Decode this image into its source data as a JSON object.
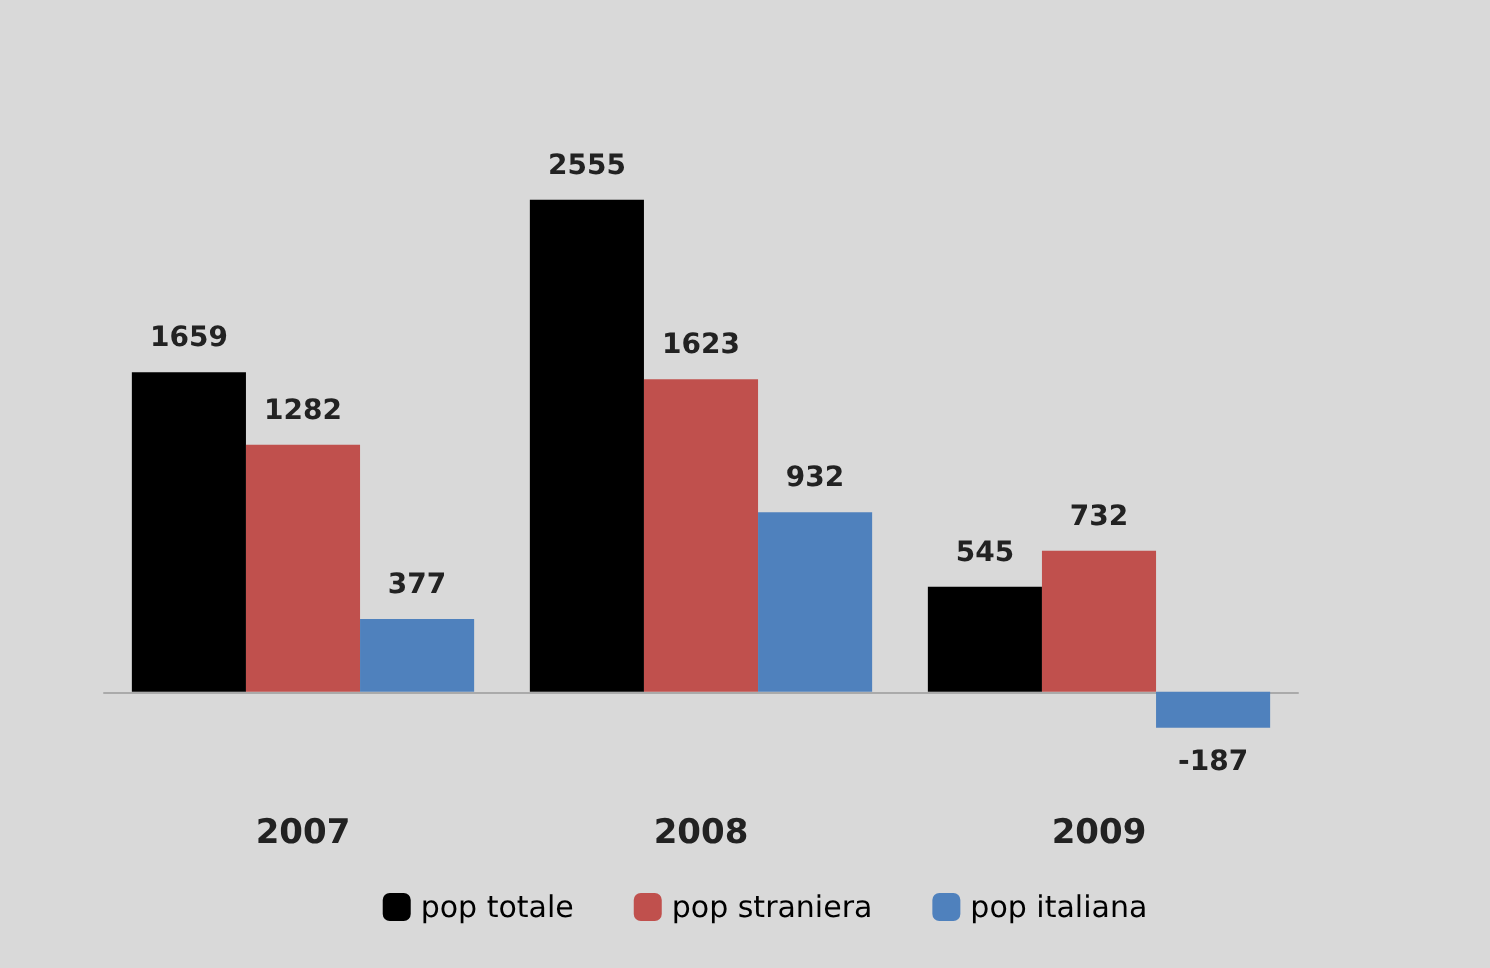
{
  "chart_data": {
    "type": "bar",
    "categories": [
      "2007",
      "2008",
      "2009"
    ],
    "series": [
      {
        "name": "pop totale",
        "color": "#000000",
        "values": [
          1659,
          2555,
          545
        ]
      },
      {
        "name": "pop straniera",
        "color": "#c0504d",
        "values": [
          1282,
          1623,
          732
        ]
      },
      {
        "name": "pop italiana",
        "color": "#4f81bd",
        "values": [
          377,
          932,
          -187
        ]
      }
    ],
    "data_labels": true,
    "legend": "bottom",
    "grid": false,
    "tick_labels": "x"
  }
}
